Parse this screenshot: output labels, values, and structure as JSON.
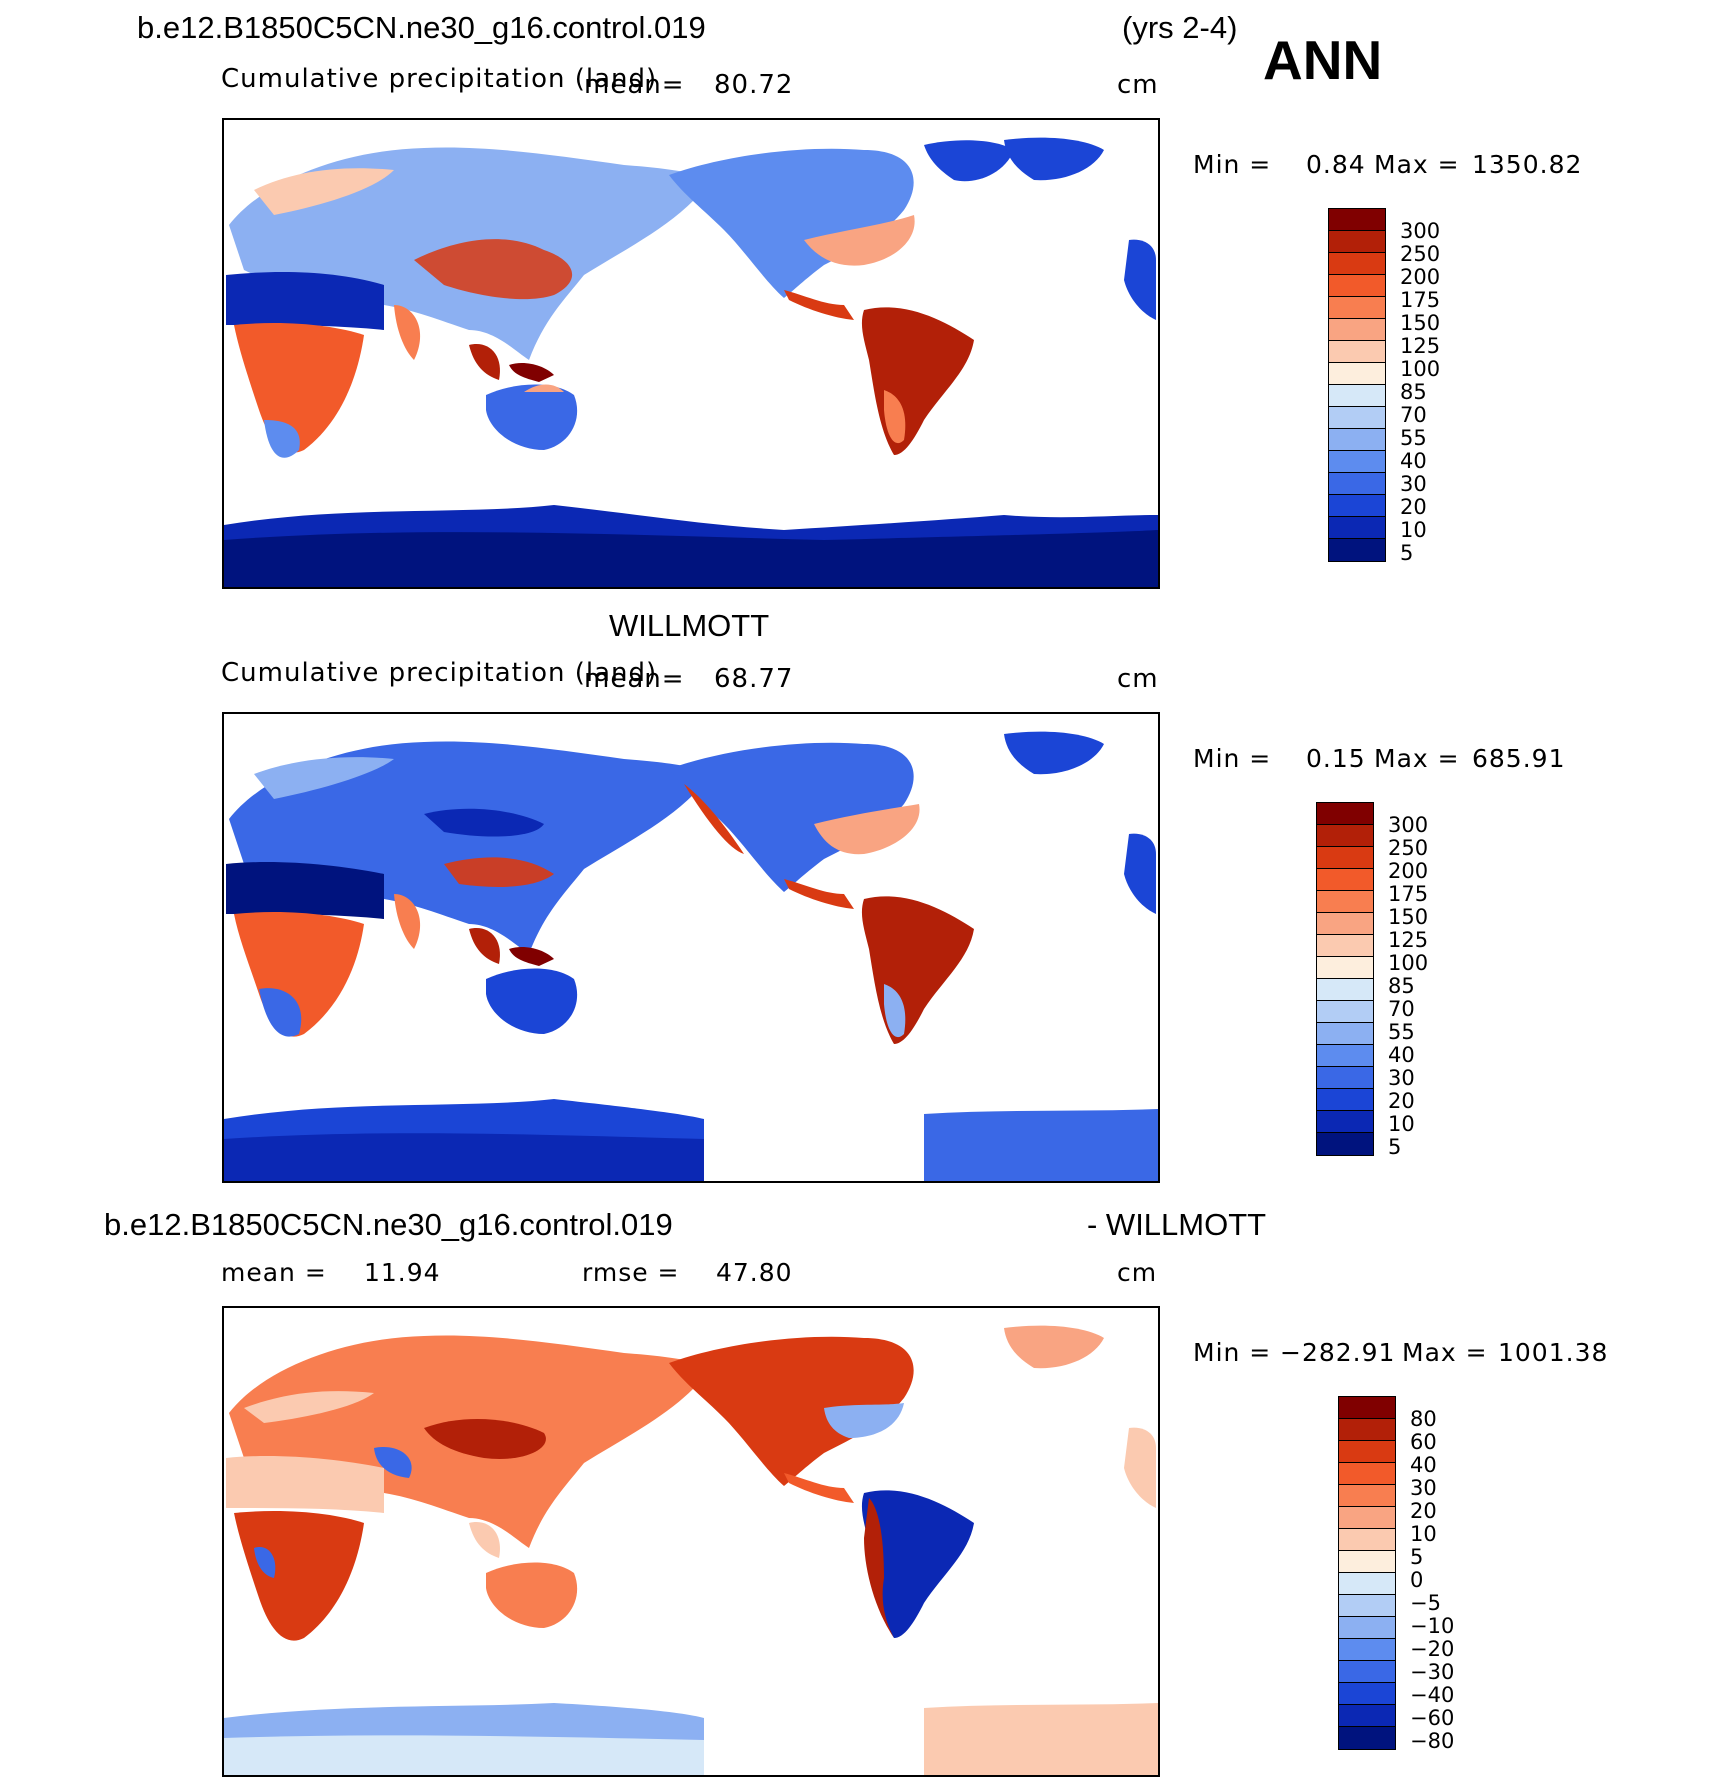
{
  "header": {
    "case_name": "b.e12.B1850C5CN.ne30_g16.control.019",
    "years": "(yrs 2-4)",
    "season": "ANN"
  },
  "panels": [
    {
      "title": "",
      "subtitle": "Cumulative precipitation (land)",
      "mean_label": "mean=",
      "mean_value": "80.72",
      "units": "cm",
      "min_label": "Min =",
      "min_value": "0.84",
      "max_label": "Max =",
      "max_value": "1350.82",
      "colorbar": {
        "labels": [
          "300",
          "250",
          "200",
          "175",
          "150",
          "125",
          "100",
          "85",
          "70",
          "55",
          "40",
          "30",
          "20",
          "10",
          "5"
        ],
        "colors": [
          "#800000",
          "#b22008",
          "#d93a12",
          "#f25a2a",
          "#f87e50",
          "#f9a482",
          "#fbcab0",
          "#fdeedd",
          "#d6e8f8",
          "#b2cdf5",
          "#8cb0f2",
          "#5d8cef",
          "#3a68e6",
          "#1b45d6",
          "#0b28b4",
          "#00137e"
        ]
      }
    },
    {
      "title": "WILLMOTT",
      "subtitle": "Cumulative precipitation (land)",
      "mean_label": "mean=",
      "mean_value": "68.77",
      "units": "cm",
      "min_label": "Min =",
      "min_value": "0.15",
      "max_label": "Max =",
      "max_value": "685.91",
      "colorbar": {
        "labels": [
          "300",
          "250",
          "200",
          "175",
          "150",
          "125",
          "100",
          "85",
          "70",
          "55",
          "40",
          "30",
          "20",
          "10",
          "5"
        ],
        "colors": [
          "#800000",
          "#b22008",
          "#d93a12",
          "#f25a2a",
          "#f87e50",
          "#f9a482",
          "#fbcab0",
          "#fdeedd",
          "#d6e8f8",
          "#b2cdf5",
          "#8cb0f2",
          "#5d8cef",
          "#3a68e6",
          "#1b45d6",
          "#0b28b4",
          "#00137e"
        ]
      }
    },
    {
      "title": "b.e12.B1850C5CN.ne30_g16.control.019",
      "title_suffix": "- WILLMOTT",
      "mean_label": "mean =",
      "mean_value": "11.94",
      "rmse_label": "rmse =",
      "rmse_value": "47.80",
      "units": "cm",
      "min_label": "Min =",
      "min_value": "−282.91",
      "max_label": "Max =",
      "max_value": "1001.38",
      "colorbar": {
        "labels": [
          "80",
          "60",
          "40",
          "30",
          "20",
          "10",
          "5",
          "0",
          "−5",
          "−10",
          "−20",
          "−30",
          "−40",
          "−60",
          "−80"
        ],
        "colors": [
          "#800000",
          "#b22008",
          "#d93a12",
          "#f25a2a",
          "#f87e50",
          "#f9a482",
          "#fbcab0",
          "#fdeedd",
          "#d6e8f8",
          "#b2cdf5",
          "#8cb0f2",
          "#5d8cef",
          "#3a68e6",
          "#1b45d6",
          "#0b28b4",
          "#00137e"
        ]
      }
    }
  ]
}
